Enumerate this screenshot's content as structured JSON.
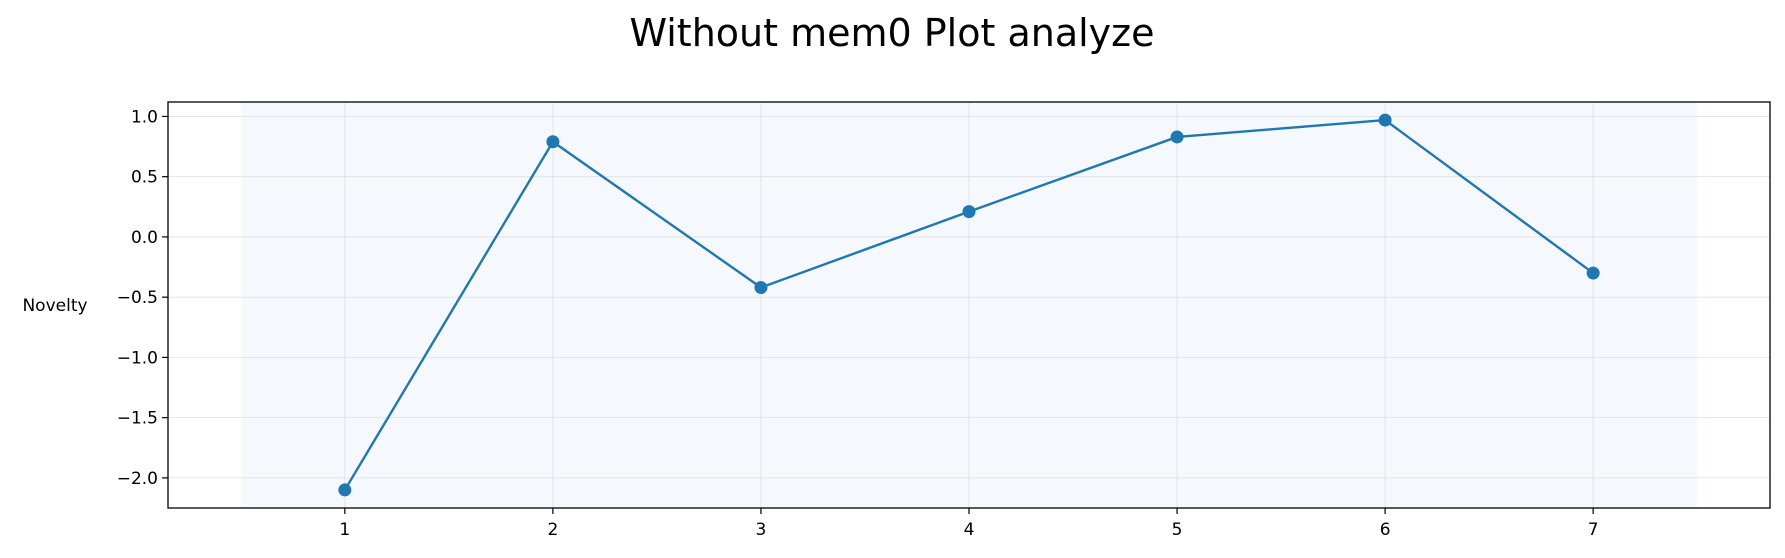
{
  "chart_data": {
    "type": "line",
    "title": "Without mem0 Plot analyze",
    "xlabel": "",
    "ylabel": "Novelty",
    "x": [
      1,
      2,
      3,
      4,
      5,
      6,
      7
    ],
    "series": [
      {
        "values": [
          -2.1,
          0.79,
          -0.42,
          0.21,
          0.83,
          0.97,
          -0.3
        ],
        "color": "#1f77b4",
        "marker": "circle"
      }
    ],
    "xlim": [
      0.15,
      7.85
    ],
    "ylim": [
      -2.25,
      1.12
    ],
    "shaded_span": [
      0.5,
      7.5
    ],
    "shaded_color": "#f5f9fd",
    "x_ticks": [
      {
        "value": 1,
        "label": "1"
      },
      {
        "value": 2,
        "label": "2"
      },
      {
        "value": 3,
        "label": "3"
      },
      {
        "value": 4,
        "label": "4"
      },
      {
        "value": 5,
        "label": "5"
      },
      {
        "value": 6,
        "label": "6"
      },
      {
        "value": 7,
        "label": "7"
      }
    ],
    "y_ticks": [
      {
        "value": 1.0,
        "label": "1.0"
      },
      {
        "value": 0.5,
        "label": "0.5"
      },
      {
        "value": 0.0,
        "label": "0.0"
      },
      {
        "value": -0.5,
        "label": "−0.5"
      },
      {
        "value": -1.0,
        "label": "−1.0"
      },
      {
        "value": -1.5,
        "label": "−1.5"
      },
      {
        "value": -2.0,
        "label": "−2.0"
      }
    ],
    "grid": true,
    "legend": "none"
  }
}
